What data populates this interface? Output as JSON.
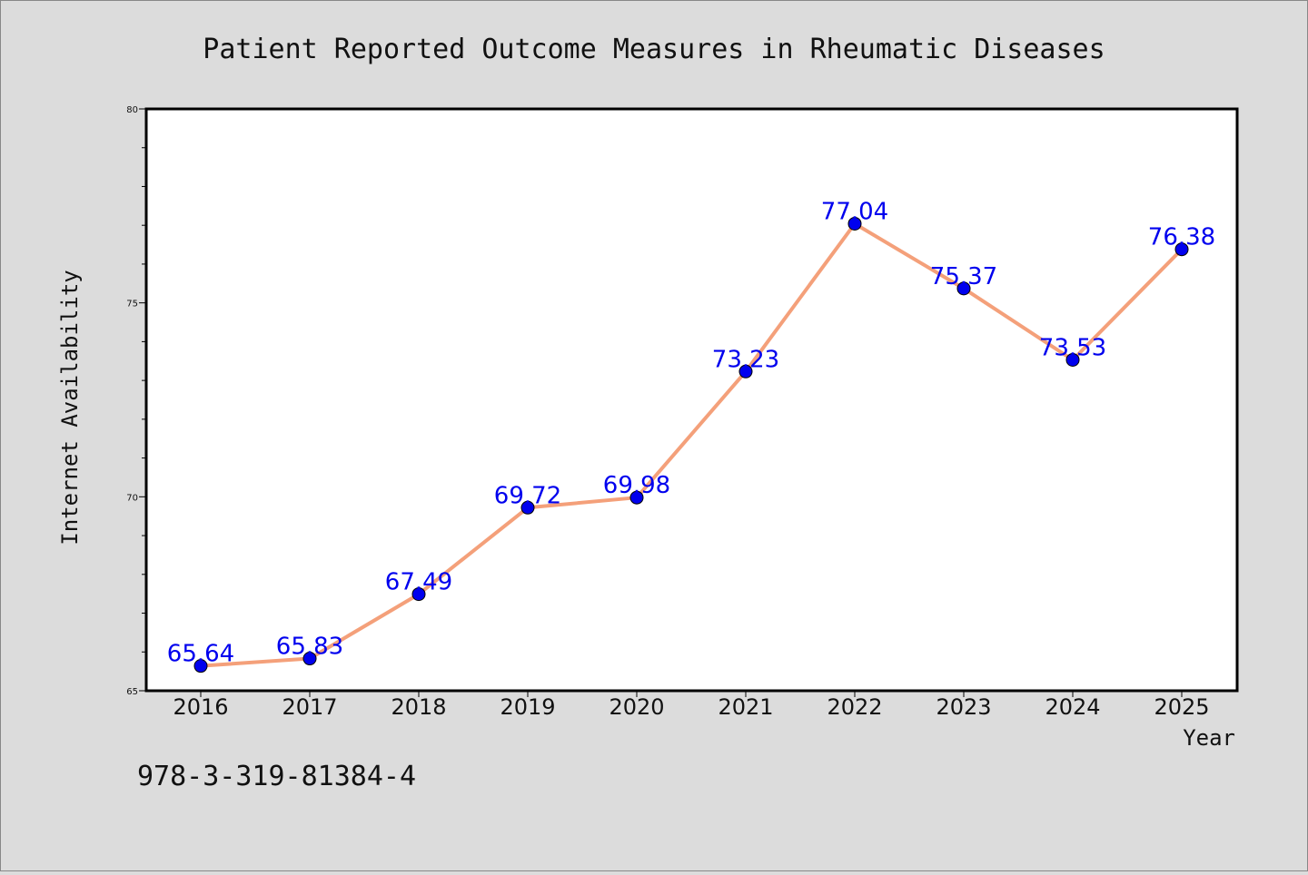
{
  "chart_data": {
    "type": "line",
    "title": "Patient Reported Outcome Measures in Rheumatic Diseases",
    "xlabel": "Year",
    "ylabel": "Internet Availability",
    "categories": [
      "2016",
      "2017",
      "2018",
      "2019",
      "2020",
      "2021",
      "2022",
      "2023",
      "2024",
      "2025"
    ],
    "series": [
      {
        "values": [
          65.64,
          65.83,
          67.49,
          69.72,
          69.98,
          73.23,
          77.04,
          75.37,
          73.53,
          76.38
        ],
        "labels": [
          "65.64",
          "65.83",
          "67.49",
          "69.72",
          "69.98",
          "73.23",
          "77.04",
          "75.37",
          "73.53",
          "76.38"
        ]
      }
    ],
    "ylim": [
      65,
      80
    ],
    "yticks": [
      "65",
      "70",
      "75",
      "80"
    ],
    "grid": false,
    "line_color": "#f4a07a",
    "marker_color": "#0000ee",
    "label_color": "#0000ee"
  },
  "footnote": "978-3-319-81384-4"
}
